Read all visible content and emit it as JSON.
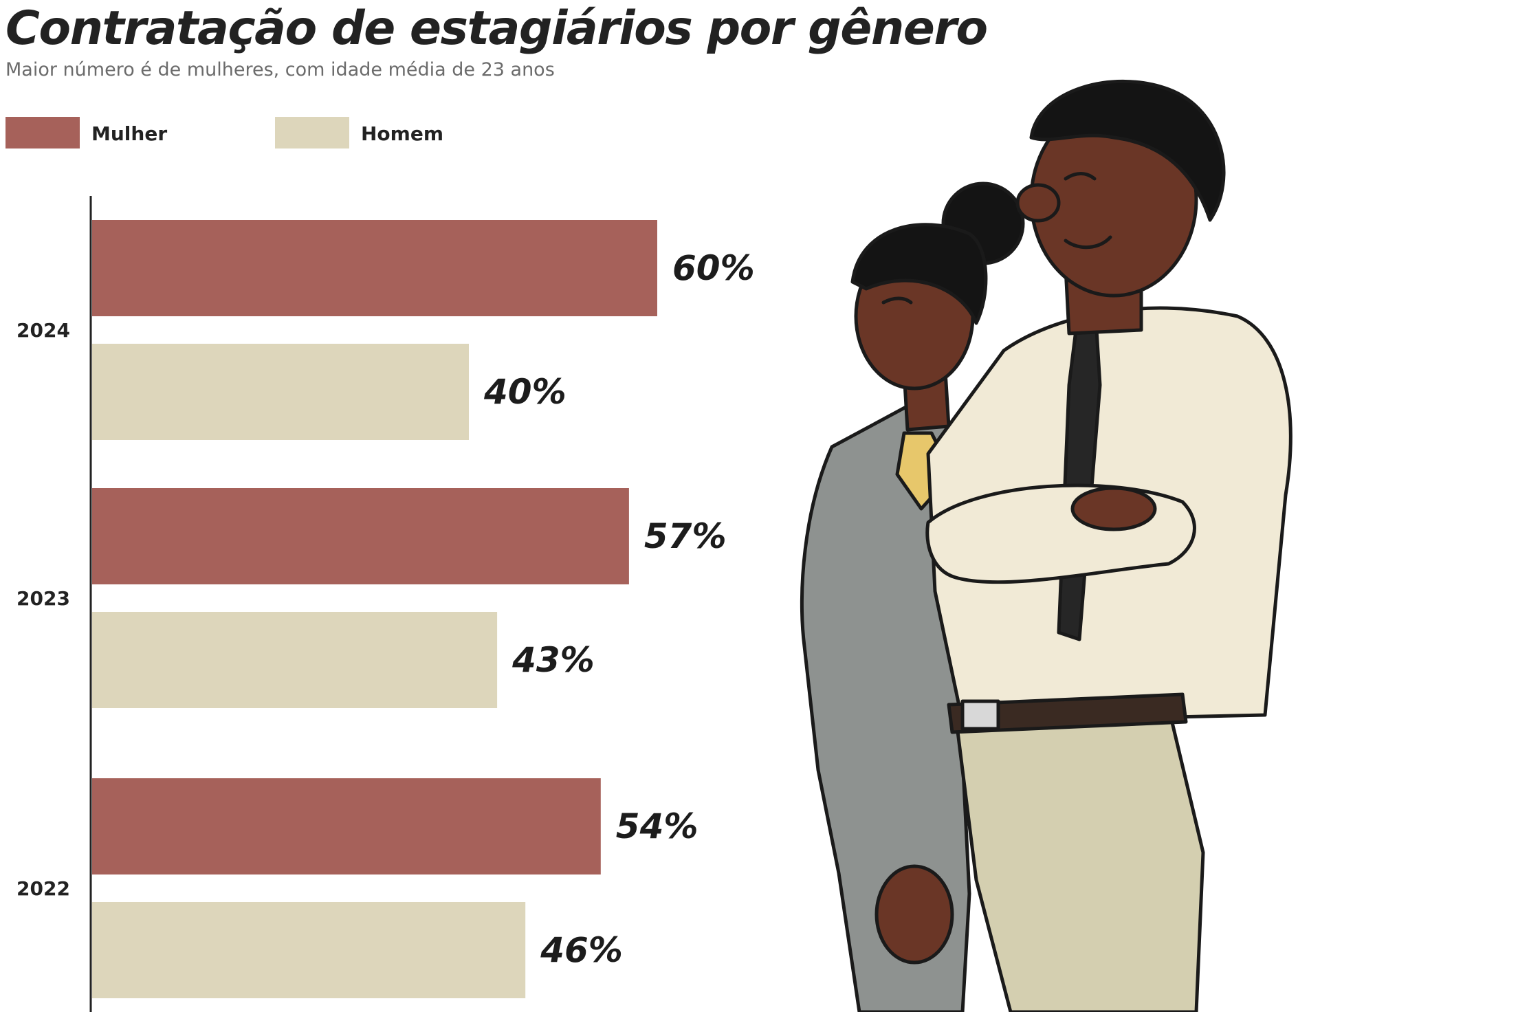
{
  "header": {
    "title": "Contratação de estagiários por gênero",
    "subtitle": "Maior número é de mulheres, com idade média de 23 anos"
  },
  "legend": [
    {
      "label": "Mulher",
      "color": "#a6615a"
    },
    {
      "label": "Homem",
      "color": "#ddd6bb"
    }
  ],
  "colors": {
    "mulher": "#a6615a",
    "homem": "#ddd6bb",
    "axis": "#222222"
  },
  "chart_data": {
    "type": "bar",
    "orientation": "horizontal",
    "title": "Contratação de estagiários por gênero",
    "subtitle": "Maior número é de mulheres, com idade média de 23 anos",
    "categories": [
      "2024",
      "2023",
      "2022"
    ],
    "series": [
      {
        "name": "Mulher",
        "color": "#a6615a",
        "values": [
          60,
          57,
          54
        ],
        "labels": [
          "60%",
          "57%",
          "54%"
        ]
      },
      {
        "name": "Homem",
        "color": "#ddd6bb",
        "values": [
          40,
          43,
          46
        ],
        "labels": [
          "40%",
          "43%",
          "46%"
        ]
      }
    ],
    "unit": "%",
    "xlim": [
      0,
      100
    ],
    "grid": false,
    "legend_position": "top-left"
  },
  "illustration": {
    "icon": "two-interns-illustration"
  }
}
